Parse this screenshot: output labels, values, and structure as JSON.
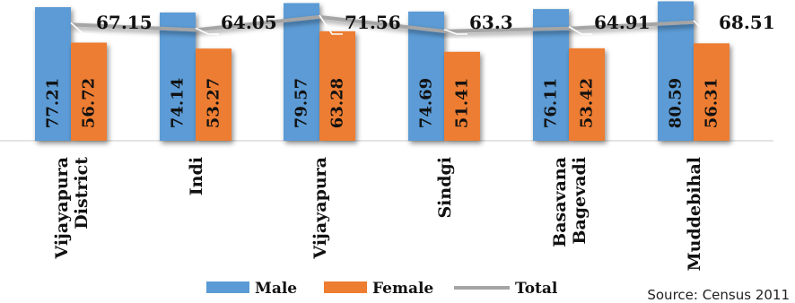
{
  "chart_data": {
    "type": "bar",
    "categories": [
      [
        "Vijayapura",
        "District"
      ],
      [
        "Indi"
      ],
      [
        "Vijayapura"
      ],
      [
        "Sindgi"
      ],
      [
        "Basavana",
        "Bagevadi"
      ],
      [
        "Muddebihal"
      ]
    ],
    "series": [
      {
        "name": "Male",
        "type": "bar",
        "color": "#5b9bd5",
        "values": [
          77.21,
          74.14,
          79.57,
          74.69,
          76.11,
          80.59
        ]
      },
      {
        "name": "Female",
        "type": "bar",
        "color": "#ed7d31",
        "values": [
          56.72,
          53.27,
          63.28,
          51.41,
          53.42,
          56.31
        ]
      },
      {
        "name": "Total",
        "type": "line",
        "color": "#a5a5a5",
        "values": [
          67.15,
          64.05,
          71.56,
          63.3,
          64.91,
          68.51
        ]
      }
    ],
    "ylim": [
      0,
      100
    ],
    "grid": false,
    "legend": "bottom",
    "source": "Source: Census 2011"
  }
}
